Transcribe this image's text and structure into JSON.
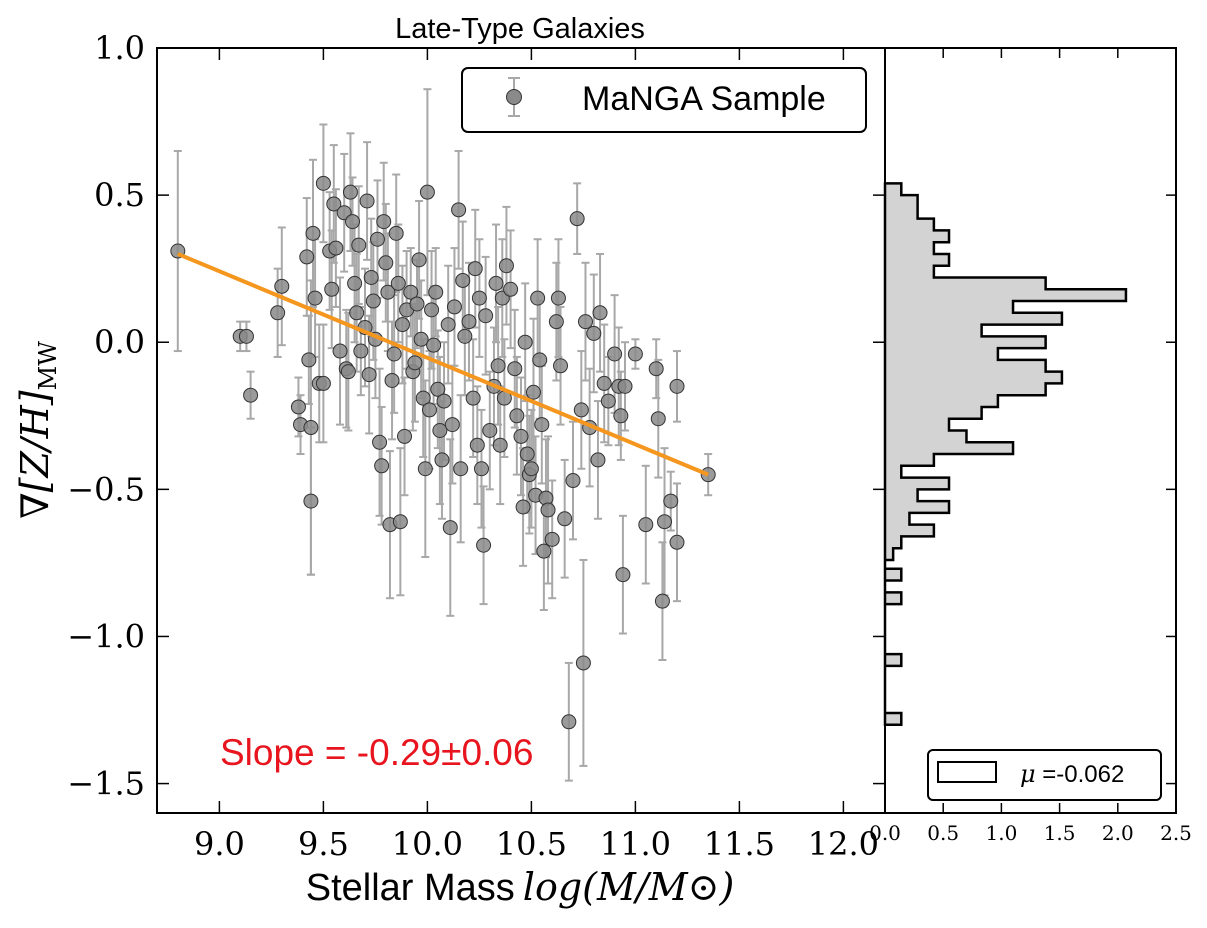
{
  "title": "Late-Type Galaxies",
  "colors": {
    "point_fill": "#8a8a8a",
    "point_edge": "#333333",
    "errorbar": "#a8a8a8",
    "fit_line": "#f5961e",
    "slope_text": "#e8141e",
    "hist_fill": "#d3d3d3",
    "axis": "#000000"
  },
  "chart_data": [
    {
      "type": "scatter",
      "title": "Late-Type Galaxies",
      "xlabel": "Stellar Mass log(M/M⊙)",
      "xlabel_text": "Stellar Mass",
      "xlabel_math": "log(M/M⊙)",
      "ylabel": "∇[Z/H]MW",
      "ylabel_main": "∇[Z/H]",
      "ylabel_sub": "MW",
      "xlim": [
        8.7,
        12.2
      ],
      "ylim": [
        -1.6,
        1.0
      ],
      "xticks": [
        9.0,
        9.5,
        10.0,
        10.5,
        11.0,
        11.5,
        12.0
      ],
      "xtick_labels": [
        "9.0",
        "9.5",
        "10.0",
        "10.5",
        "11.0",
        "11.5",
        "12.0"
      ],
      "yticks": [
        -1.5,
        -1.0,
        -0.5,
        0.0,
        0.5,
        1.0
      ],
      "ytick_labels": [
        "−1.5",
        "−1.0",
        "−0.5",
        "0.0",
        "0.5",
        "1.0"
      ],
      "legend": {
        "label": "MaNGA Sample",
        "position": "top-right"
      },
      "fit": {
        "x": [
          8.8,
          11.35
        ],
        "y": [
          0.3,
          -0.45
        ],
        "slope": -0.29,
        "slope_err": 0.06
      },
      "annotation": "Slope = -0.29±0.06",
      "points": [
        {
          "x": 8.8,
          "y": 0.31,
          "e": 0.34
        },
        {
          "x": 9.1,
          "y": 0.02,
          "e": 0.05
        },
        {
          "x": 9.13,
          "y": 0.02,
          "e": 0.05
        },
        {
          "x": 9.15,
          "y": -0.18,
          "e": 0.08
        },
        {
          "x": 9.28,
          "y": 0.1,
          "e": 0.15
        },
        {
          "x": 9.3,
          "y": 0.19,
          "e": 0.2
        },
        {
          "x": 9.38,
          "y": -0.22,
          "e": 0.1
        },
        {
          "x": 9.39,
          "y": -0.28,
          "e": 0.1
        },
        {
          "x": 9.42,
          "y": 0.29,
          "e": 0.2
        },
        {
          "x": 9.43,
          "y": -0.06,
          "e": 0.15
        },
        {
          "x": 9.44,
          "y": -0.29,
          "e": 0.5
        },
        {
          "x": 9.44,
          "y": -0.54,
          "e": 0.25
        },
        {
          "x": 9.45,
          "y": 0.37,
          "e": 0.25
        },
        {
          "x": 9.46,
          "y": 0.15,
          "e": 0.2
        },
        {
          "x": 9.48,
          "y": -0.14,
          "e": 0.2
        },
        {
          "x": 9.5,
          "y": -0.14,
          "e": 0.2
        },
        {
          "x": 9.5,
          "y": 0.54,
          "e": 0.2
        },
        {
          "x": 9.53,
          "y": 0.31,
          "e": 0.2
        },
        {
          "x": 9.54,
          "y": 0.18,
          "e": 0.2
        },
        {
          "x": 9.55,
          "y": 0.47,
          "e": 0.2
        },
        {
          "x": 9.56,
          "y": 0.32,
          "e": 0.2
        },
        {
          "x": 9.58,
          "y": -0.03,
          "e": 0.25
        },
        {
          "x": 9.6,
          "y": 0.44,
          "e": 0.2
        },
        {
          "x": 9.61,
          "y": -0.09,
          "e": 0.2
        },
        {
          "x": 9.62,
          "y": -0.1,
          "e": 0.2
        },
        {
          "x": 9.63,
          "y": 0.51,
          "e": 0.2
        },
        {
          "x": 9.64,
          "y": 0.41,
          "e": 0.15
        },
        {
          "x": 9.65,
          "y": 0.2,
          "e": 0.2
        },
        {
          "x": 9.66,
          "y": 0.1,
          "e": 0.2
        },
        {
          "x": 9.67,
          "y": 0.33,
          "e": 0.2
        },
        {
          "x": 9.68,
          "y": -0.03,
          "e": 0.15
        },
        {
          "x": 9.7,
          "y": 0.05,
          "e": 0.2
        },
        {
          "x": 9.71,
          "y": 0.48,
          "e": 0.2
        },
        {
          "x": 9.72,
          "y": -0.11,
          "e": 0.2
        },
        {
          "x": 9.73,
          "y": 0.22,
          "e": 0.2
        },
        {
          "x": 9.74,
          "y": 0.14,
          "e": 0.2
        },
        {
          "x": 9.75,
          "y": 0.01,
          "e": 0.2
        },
        {
          "x": 9.76,
          "y": 0.35,
          "e": 0.2
        },
        {
          "x": 9.77,
          "y": -0.34,
          "e": 0.25
        },
        {
          "x": 9.78,
          "y": -0.42,
          "e": 0.2
        },
        {
          "x": 9.79,
          "y": 0.41,
          "e": 0.2
        },
        {
          "x": 9.8,
          "y": 0.27,
          "e": 0.2
        },
        {
          "x": 9.81,
          "y": 0.17,
          "e": 0.2
        },
        {
          "x": 9.82,
          "y": -0.62,
          "e": 0.25
        },
        {
          "x": 9.83,
          "y": -0.13,
          "e": 0.2
        },
        {
          "x": 9.84,
          "y": -0.04,
          "e": 0.2
        },
        {
          "x": 9.85,
          "y": 0.37,
          "e": 0.2
        },
        {
          "x": 9.86,
          "y": 0.2,
          "e": 0.2
        },
        {
          "x": 9.87,
          "y": -0.61,
          "e": 0.25
        },
        {
          "x": 9.88,
          "y": 0.06,
          "e": 0.2
        },
        {
          "x": 9.89,
          "y": -0.32,
          "e": 0.2
        },
        {
          "x": 9.9,
          "y": 0.11,
          "e": 0.2
        },
        {
          "x": 9.92,
          "y": 0.17,
          "e": 0.15
        },
        {
          "x": 9.93,
          "y": -0.1,
          "e": 0.2
        },
        {
          "x": 9.94,
          "y": -0.07,
          "e": 0.2
        },
        {
          "x": 9.95,
          "y": 0.13,
          "e": 0.15
        },
        {
          "x": 9.96,
          "y": 0.28,
          "e": 0.2
        },
        {
          "x": 9.97,
          "y": 0.01,
          "e": 0.2
        },
        {
          "x": 9.98,
          "y": -0.19,
          "e": 0.2
        },
        {
          "x": 9.99,
          "y": -0.43,
          "e": 0.3
        },
        {
          "x": 10.0,
          "y": 0.51,
          "e": 0.35
        },
        {
          "x": 10.01,
          "y": -0.23,
          "e": 0.2
        },
        {
          "x": 10.02,
          "y": 0.11,
          "e": 0.2
        },
        {
          "x": 10.03,
          "y": -0.01,
          "e": 0.2
        },
        {
          "x": 10.04,
          "y": 0.17,
          "e": 0.15
        },
        {
          "x": 10.05,
          "y": -0.16,
          "e": 0.2
        },
        {
          "x": 10.06,
          "y": -0.3,
          "e": 0.25
        },
        {
          "x": 10.07,
          "y": -0.4,
          "e": 0.2
        },
        {
          "x": 10.08,
          "y": -0.2,
          "e": 0.2
        },
        {
          "x": 10.1,
          "y": 0.06,
          "e": 0.2
        },
        {
          "x": 10.11,
          "y": -0.63,
          "e": 0.3
        },
        {
          "x": 10.12,
          "y": -0.28,
          "e": 0.2
        },
        {
          "x": 10.13,
          "y": 0.12,
          "e": 0.2
        },
        {
          "x": 10.15,
          "y": 0.45,
          "e": 0.2
        },
        {
          "x": 10.16,
          "y": -0.43,
          "e": 0.25
        },
        {
          "x": 10.17,
          "y": 0.21,
          "e": 0.2
        },
        {
          "x": 10.18,
          "y": 0.02,
          "e": 0.2
        },
        {
          "x": 10.2,
          "y": 0.07,
          "e": 0.2
        },
        {
          "x": 10.22,
          "y": -0.19,
          "e": 0.2
        },
        {
          "x": 10.23,
          "y": 0.25,
          "e": 0.2
        },
        {
          "x": 10.24,
          "y": -0.35,
          "e": 0.2
        },
        {
          "x": 10.25,
          "y": 0.15,
          "e": 0.2
        },
        {
          "x": 10.26,
          "y": -0.43,
          "e": 0.2
        },
        {
          "x": 10.27,
          "y": -0.69,
          "e": 0.2
        },
        {
          "x": 10.28,
          "y": 0.09,
          "e": 0.2
        },
        {
          "x": 10.3,
          "y": -0.3,
          "e": 0.2
        },
        {
          "x": 10.32,
          "y": -0.15,
          "e": 0.2
        },
        {
          "x": 10.33,
          "y": 0.2,
          "e": 0.2
        },
        {
          "x": 10.34,
          "y": -0.08,
          "e": 0.2
        },
        {
          "x": 10.35,
          "y": -0.35,
          "e": 0.2
        },
        {
          "x": 10.36,
          "y": 0.15,
          "e": 0.2
        },
        {
          "x": 10.37,
          "y": -0.19,
          "e": 0.2
        },
        {
          "x": 10.38,
          "y": 0.26,
          "e": 0.2
        },
        {
          "x": 10.4,
          "y": 0.18,
          "e": 0.2
        },
        {
          "x": 10.42,
          "y": -0.09,
          "e": 0.2
        },
        {
          "x": 10.43,
          "y": -0.25,
          "e": 0.2
        },
        {
          "x": 10.45,
          "y": -0.32,
          "e": 0.2
        },
        {
          "x": 10.46,
          "y": -0.56,
          "e": 0.2
        },
        {
          "x": 10.47,
          "y": 0.0,
          "e": 0.2
        },
        {
          "x": 10.48,
          "y": -0.38,
          "e": 0.2
        },
        {
          "x": 10.49,
          "y": -0.45,
          "e": 0.2
        },
        {
          "x": 10.5,
          "y": -0.43,
          "e": 0.2
        },
        {
          "x": 10.51,
          "y": -0.17,
          "e": 0.25
        },
        {
          "x": 10.52,
          "y": -0.52,
          "e": 0.2
        },
        {
          "x": 10.53,
          "y": 0.15,
          "e": 0.2
        },
        {
          "x": 10.54,
          "y": -0.06,
          "e": 0.2
        },
        {
          "x": 10.55,
          "y": -0.28,
          "e": 0.2
        },
        {
          "x": 10.56,
          "y": -0.71,
          "e": 0.2
        },
        {
          "x": 10.57,
          "y": -0.53,
          "e": 0.2
        },
        {
          "x": 10.58,
          "y": -0.57,
          "e": 0.25
        },
        {
          "x": 10.6,
          "y": -0.67,
          "e": 0.2
        },
        {
          "x": 10.62,
          "y": 0.07,
          "e": 0.2
        },
        {
          "x": 10.63,
          "y": 0.15,
          "e": 0.2
        },
        {
          "x": 10.64,
          "y": -0.08,
          "e": 0.2
        },
        {
          "x": 10.66,
          "y": -0.6,
          "e": 0.2
        },
        {
          "x": 10.68,
          "y": -1.29,
          "e": 0.2
        },
        {
          "x": 10.7,
          "y": -0.47,
          "e": 0.2
        },
        {
          "x": 10.72,
          "y": 0.42,
          "e": 0.12
        },
        {
          "x": 10.74,
          "y": -0.23,
          "e": 0.2
        },
        {
          "x": 10.75,
          "y": -1.09,
          "e": 0.35
        },
        {
          "x": 10.76,
          "y": 0.07,
          "e": 0.2
        },
        {
          "x": 10.78,
          "y": -0.29,
          "e": 0.2
        },
        {
          "x": 10.8,
          "y": 0.03,
          "e": 0.2
        },
        {
          "x": 10.82,
          "y": -0.4,
          "e": 0.2
        },
        {
          "x": 10.83,
          "y": 0.1,
          "e": 0.2
        },
        {
          "x": 10.85,
          "y": -0.14,
          "e": 0.2
        },
        {
          "x": 10.87,
          "y": -0.2,
          "e": 0.15
        },
        {
          "x": 10.9,
          "y": -0.04,
          "e": 0.2
        },
        {
          "x": 10.92,
          "y": -0.15,
          "e": 0.2
        },
        {
          "x": 10.93,
          "y": -0.25,
          "e": 0.15
        },
        {
          "x": 10.94,
          "y": -0.79,
          "e": 0.2
        },
        {
          "x": 10.95,
          "y": -0.15,
          "e": 0.15
        },
        {
          "x": 11.0,
          "y": -0.04,
          "e": 0.05
        },
        {
          "x": 11.05,
          "y": -0.62,
          "e": 0.2
        },
        {
          "x": 11.1,
          "y": -0.09,
          "e": 0.1
        },
        {
          "x": 11.11,
          "y": -0.26,
          "e": 0.2
        },
        {
          "x": 11.13,
          "y": -0.88,
          "e": 0.2
        },
        {
          "x": 11.14,
          "y": -0.61,
          "e": 0.25
        },
        {
          "x": 11.17,
          "y": -0.54,
          "e": 0.1
        },
        {
          "x": 11.2,
          "y": -0.15,
          "e": 0.12
        },
        {
          "x": 11.2,
          "y": -0.68,
          "e": 0.2
        },
        {
          "x": 11.35,
          "y": -0.45,
          "e": 0.07
        }
      ]
    },
    {
      "type": "histogram",
      "orientation": "horizontal",
      "xlim": [
        0.0,
        2.5
      ],
      "xticks": [
        0.0,
        0.5,
        1.0,
        1.5,
        2.0,
        2.5
      ],
      "xtick_labels": [
        "0.0",
        "0.5",
        "1.0",
        "1.5",
        "2.0",
        "2.5"
      ],
      "legend": {
        "label": "μ =-0.062",
        "label_mu": "μ",
        "label_rest": " =-0.062",
        "position": "bottom-right"
      },
      "mean": -0.062,
      "bins": [
        {
          "lo": -1.3,
          "hi": -1.26,
          "v": 0.14
        },
        {
          "lo": -1.26,
          "hi": -1.1,
          "v": 0.0
        },
        {
          "lo": -1.1,
          "hi": -1.06,
          "v": 0.14
        },
        {
          "lo": -1.06,
          "hi": -0.89,
          "v": 0.0
        },
        {
          "lo": -0.89,
          "hi": -0.85,
          "v": 0.14
        },
        {
          "lo": -0.85,
          "hi": -0.81,
          "v": 0.0
        },
        {
          "lo": -0.81,
          "hi": -0.77,
          "v": 0.14
        },
        {
          "lo": -0.77,
          "hi": -0.74,
          "v": 0.0
        },
        {
          "lo": -0.74,
          "hi": -0.7,
          "v": 0.07
        },
        {
          "lo": -0.7,
          "hi": -0.66,
          "v": 0.14
        },
        {
          "lo": -0.66,
          "hi": -0.62,
          "v": 0.42
        },
        {
          "lo": -0.62,
          "hi": -0.58,
          "v": 0.21
        },
        {
          "lo": -0.58,
          "hi": -0.54,
          "v": 0.55
        },
        {
          "lo": -0.54,
          "hi": -0.5,
          "v": 0.28
        },
        {
          "lo": -0.5,
          "hi": -0.46,
          "v": 0.55
        },
        {
          "lo": -0.46,
          "hi": -0.42,
          "v": 0.14
        },
        {
          "lo": -0.42,
          "hi": -0.38,
          "v": 0.42
        },
        {
          "lo": -0.38,
          "hi": -0.34,
          "v": 1.1
        },
        {
          "lo": -0.34,
          "hi": -0.3,
          "v": 0.7
        },
        {
          "lo": -0.3,
          "hi": -0.26,
          "v": 0.55
        },
        {
          "lo": -0.26,
          "hi": -0.22,
          "v": 0.83
        },
        {
          "lo": -0.22,
          "hi": -0.18,
          "v": 0.97
        },
        {
          "lo": -0.18,
          "hi": -0.14,
          "v": 1.38
        },
        {
          "lo": -0.14,
          "hi": -0.1,
          "v": 1.52
        },
        {
          "lo": -0.1,
          "hi": -0.06,
          "v": 1.38
        },
        {
          "lo": -0.06,
          "hi": -0.02,
          "v": 0.97
        },
        {
          "lo": -0.02,
          "hi": 0.02,
          "v": 1.38
        },
        {
          "lo": 0.02,
          "hi": 0.06,
          "v": 0.83
        },
        {
          "lo": 0.06,
          "hi": 0.1,
          "v": 1.52
        },
        {
          "lo": 0.1,
          "hi": 0.14,
          "v": 1.1
        },
        {
          "lo": 0.14,
          "hi": 0.18,
          "v": 2.07
        },
        {
          "lo": 0.18,
          "hi": 0.22,
          "v": 1.38
        },
        {
          "lo": 0.22,
          "hi": 0.26,
          "v": 0.42
        },
        {
          "lo": 0.26,
          "hi": 0.3,
          "v": 0.55
        },
        {
          "lo": 0.3,
          "hi": 0.34,
          "v": 0.42
        },
        {
          "lo": 0.34,
          "hi": 0.38,
          "v": 0.55
        },
        {
          "lo": 0.38,
          "hi": 0.42,
          "v": 0.42
        },
        {
          "lo": 0.42,
          "hi": 0.46,
          "v": 0.28
        },
        {
          "lo": 0.46,
          "hi": 0.5,
          "v": 0.28
        },
        {
          "lo": 0.5,
          "hi": 0.54,
          "v": 0.14
        }
      ]
    }
  ]
}
